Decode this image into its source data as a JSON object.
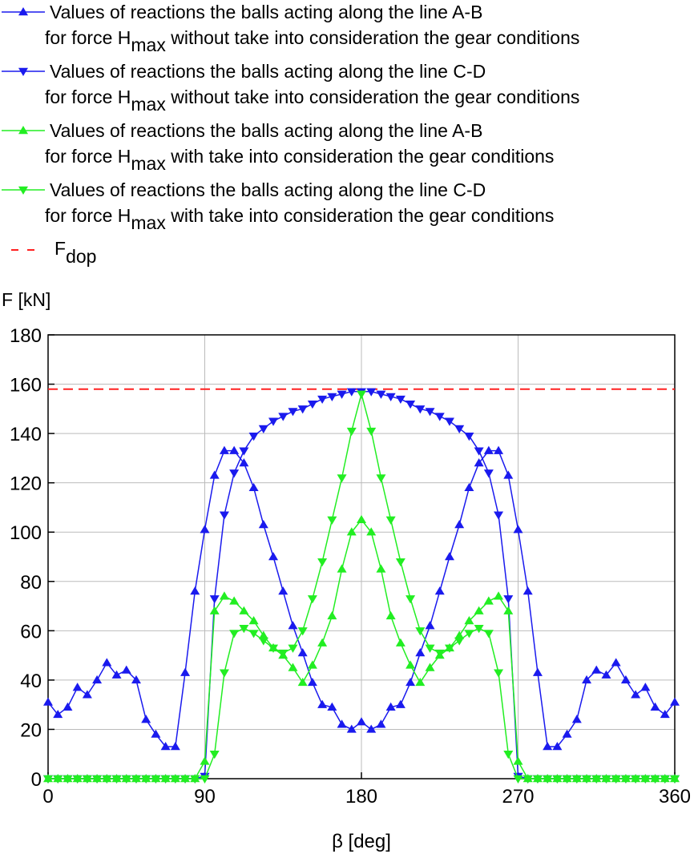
{
  "chart_data": {
    "type": "line",
    "ylabel": "F [kN]",
    "xlabel": "β [deg]",
    "xlim": [
      0,
      360
    ],
    "xticks": [
      0,
      90,
      180,
      270,
      360
    ],
    "ylim": [
      0,
      180
    ],
    "yticks": [
      0,
      20,
      40,
      60,
      80,
      100,
      120,
      140,
      160,
      180
    ],
    "grid": true,
    "x": [
      0,
      5.625,
      11.25,
      16.875,
      22.5,
      28.125,
      33.75,
      39.375,
      45,
      50.625,
      56.25,
      61.875,
      67.5,
      73.125,
      78.75,
      84.375,
      90,
      95.625,
      101.25,
      106.875,
      112.5,
      118.125,
      123.75,
      129.375,
      135,
      140.625,
      146.25,
      151.875,
      157.5,
      163.125,
      168.75,
      174.375,
      180,
      185.625,
      191.25,
      196.875,
      202.5,
      208.125,
      213.75,
      219.375,
      225,
      230.625,
      236.25,
      241.875,
      247.5,
      253.125,
      258.75,
      264.375,
      270,
      275.625,
      281.25,
      286.875,
      292.5,
      298.125,
      303.75,
      309.375,
      315,
      320.625,
      326.25,
      331.875,
      337.5,
      343.125,
      348.75,
      354.375,
      360
    ],
    "series": [
      {
        "name": {
          "line1": "Values of reactions the balls acting along the line A-B",
          "line2": [
            "for force H",
            "max",
            " without take into consideration the gear conditions"
          ]
        },
        "color": "#1a1aee",
        "marker": "triangle-up",
        "values": [
          31,
          26,
          29,
          37,
          34,
          40,
          47,
          42,
          44,
          40,
          24,
          18,
          13,
          13,
          43,
          76,
          101,
          123,
          133,
          133,
          128,
          118,
          103,
          90,
          76,
          62,
          51,
          39,
          30,
          29,
          22,
          20,
          23,
          20,
          22,
          29,
          30,
          39,
          51,
          62,
          76,
          90,
          103,
          118,
          128,
          133,
          133,
          123,
          101,
          76,
          43,
          13,
          13,
          18,
          24,
          40,
          44,
          42,
          47,
          40,
          34,
          37,
          29,
          26,
          31
        ]
      },
      {
        "name": {
          "line1": "Values of reactions the balls acting along the line C-D",
          "line2": [
            "for force H",
            "max",
            " without take into consideration the gear conditions"
          ]
        },
        "color": "#1a1aee",
        "marker": "triangle-down",
        "values": [
          0,
          0,
          0,
          0,
          0,
          0,
          0,
          0,
          0,
          0,
          0,
          0,
          0,
          0,
          0,
          0,
          1,
          73,
          107,
          124,
          133,
          139,
          142,
          145,
          147,
          149,
          150,
          152,
          154,
          155,
          156,
          157,
          157,
          157,
          156,
          155,
          154,
          152,
          150,
          149,
          147,
          145,
          142,
          139,
          133,
          124,
          107,
          73,
          1,
          0,
          0,
          0,
          0,
          0,
          0,
          0,
          0,
          0,
          0,
          0,
          0,
          0,
          0,
          0,
          0
        ]
      },
      {
        "name": {
          "line1": "Values of reactions the balls acting along the line A-B",
          "line2": [
            "for force H",
            "max",
            " with take into consideration the gear conditions"
          ]
        },
        "color": "#22ee22",
        "marker": "triangle-up",
        "values": [
          0,
          0,
          0,
          0,
          0,
          0,
          0,
          0,
          0,
          0,
          0,
          0,
          0,
          0,
          0,
          0,
          7,
          68,
          74,
          72,
          68,
          64,
          58,
          53,
          50,
          45,
          39,
          46,
          55,
          66,
          85,
          100,
          105,
          100,
          85,
          66,
          55,
          46,
          39,
          45,
          50,
          53,
          58,
          64,
          68,
          72,
          74,
          68,
          7,
          0,
          0,
          0,
          0,
          0,
          0,
          0,
          0,
          0,
          0,
          0,
          0,
          0,
          0,
          0,
          0
        ]
      },
      {
        "name": {
          "line1": "Values of reactions the balls acting along the line C-D",
          "line2": [
            "for force H",
            "max",
            " with take into consideration the gear conditions"
          ]
        },
        "color": "#22ee22",
        "marker": "triangle-down",
        "values": [
          0,
          0,
          0,
          0,
          0,
          0,
          0,
          0,
          0,
          0,
          0,
          0,
          0,
          0,
          0,
          0,
          0,
          10,
          43,
          59,
          61,
          59,
          56,
          53,
          51,
          53,
          60,
          73,
          88,
          105,
          122,
          141,
          156,
          141,
          122,
          105,
          88,
          73,
          60,
          53,
          51,
          53,
          56,
          59,
          61,
          59,
          43,
          10,
          0,
          0,
          0,
          0,
          0,
          0,
          0,
          0,
          0,
          0,
          0,
          0,
          0,
          0,
          0,
          0,
          0
        ]
      }
    ],
    "threshold": {
      "name": [
        "F",
        "dop"
      ],
      "value": 158,
      "color": "#ff2020"
    }
  }
}
